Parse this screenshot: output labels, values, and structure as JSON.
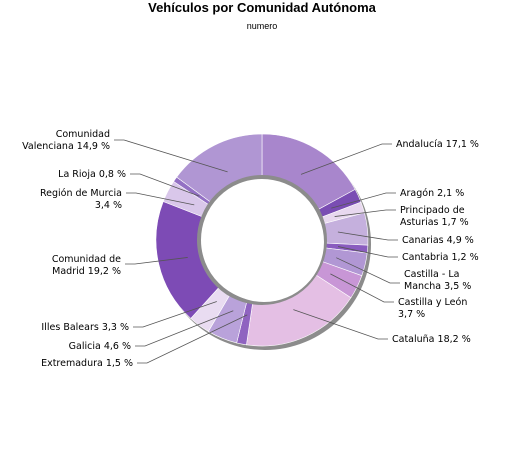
{
  "chart_data": {
    "type": "pie",
    "title": "Vehículos por Comunidad Autónoma",
    "subtitle": "numero",
    "donut": true,
    "slices": [
      {
        "name": "Andalucía",
        "value": 17.1,
        "label": [
          "Andalucía 17,1 %"
        ],
        "color": "#a886cc"
      },
      {
        "name": "Aragón",
        "value": 2.1,
        "label": [
          "Aragón 2,1 %"
        ],
        "color": "#7a4db3"
      },
      {
        "name": "Principado de Asturias",
        "value": 1.7,
        "label": [
          "Principado de",
          "Asturias 1,7 %"
        ],
        "color": "#e8d8ef"
      },
      {
        "name": "Canarias",
        "value": 4.9,
        "label": [
          "Canarias 4,9 %"
        ],
        "color": "#c5b0dd"
      },
      {
        "name": "Cantabria",
        "value": 1.2,
        "label": [
          "Cantabria 1,2 %"
        ],
        "color": "#8a5cbf"
      },
      {
        "name": "Castilla - La Mancha",
        "value": 3.5,
        "label": [
          "Castilla - La",
          "Mancha 3,5 %"
        ],
        "color": "#b197d4"
      },
      {
        "name": "Castilla y León",
        "value": 3.7,
        "label": [
          "Castilla y León",
          "3,7 %"
        ],
        "color": "#c896d6"
      },
      {
        "name": "Cataluña",
        "value": 18.2,
        "label": [
          "Cataluña 18,2 %"
        ],
        "color": "#e4bfe4"
      },
      {
        "name": "Extremadura",
        "value": 1.5,
        "label": [
          "Extremadura 1,5 %"
        ],
        "color": "#8f63c0"
      },
      {
        "name": "Galicia",
        "value": 4.6,
        "label": [
          "Galicia 4,6 %"
        ],
        "color": "#b9a2da"
      },
      {
        "name": "Illes Balears",
        "value": 3.3,
        "label": [
          "Illes Balears 3,3 %"
        ],
        "color": "#e9dcf1"
      },
      {
        "name": "Comunidad de Madrid",
        "value": 19.2,
        "label": [
          "Comunidad de",
          "Madrid 19,2 %"
        ],
        "color": "#7d4bb5"
      },
      {
        "name": "Región de Murcia",
        "value": 3.4,
        "label": [
          "Región de Murcia",
          "3,4 %"
        ],
        "color": "#d9c7ea"
      },
      {
        "name": "La Rioja",
        "value": 0.8,
        "label": [
          "La Rioja 0,8 %"
        ],
        "color": "#9370c4"
      },
      {
        "name": "Comunidad Valenciana",
        "value": 14.9,
        "label": [
          "Comunidad",
          "Valenciana 14,9 %"
        ],
        "color": "#b096d3"
      }
    ]
  }
}
